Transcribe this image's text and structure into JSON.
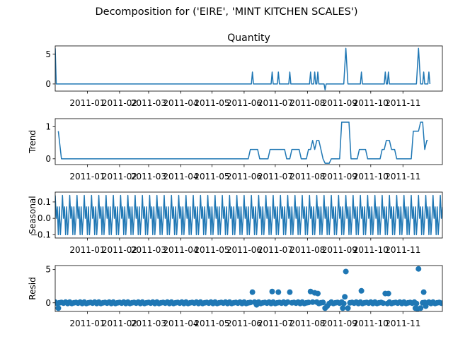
{
  "figure": {
    "title": "Decomposition for ('EIRE', 'MINT KITCHEN SCALES')"
  },
  "colors": {
    "series": "#1f77b4",
    "axes": "#000000",
    "background": "#ffffff"
  },
  "x_axis": {
    "date_range": [
      "2010-12-01",
      "2011-12-09"
    ],
    "tick_dates": [
      "2011-01-01",
      "2011-02-01",
      "2011-03-01",
      "2011-04-01",
      "2011-05-01",
      "2011-06-01",
      "2011-07-01",
      "2011-08-01",
      "2011-09-01",
      "2011-10-01",
      "2011-11-01"
    ],
    "tick_labels": [
      "2011-01",
      "2011-02",
      "2011-03",
      "2011-04",
      "2011-05",
      "2011-06",
      "2011-07",
      "2011-08",
      "2011-09",
      "2011-10",
      "2011-11"
    ]
  },
  "chart_data": [
    {
      "type": "line",
      "title": "Quantity",
      "ylabel": "",
      "ylim": [
        -1.2,
        6.4
      ],
      "yticks": [
        0,
        5
      ],
      "series": [
        {
          "points": [
            [
              "2010-12-01",
              6
            ],
            [
              "2010-12-02",
              0
            ],
            [
              "2011-06-08",
              0
            ],
            [
              "2011-06-09",
              2
            ],
            [
              "2011-06-10",
              0
            ],
            [
              "2011-06-27",
              0
            ],
            [
              "2011-06-28",
              2
            ],
            [
              "2011-06-29",
              0
            ],
            [
              "2011-07-03",
              0
            ],
            [
              "2011-07-04",
              2
            ],
            [
              "2011-07-05",
              0
            ],
            [
              "2011-07-14",
              0
            ],
            [
              "2011-07-15",
              2
            ],
            [
              "2011-07-16",
              0
            ],
            [
              "2011-08-03",
              0
            ],
            [
              "2011-08-04",
              2
            ],
            [
              "2011-08-05",
              0
            ],
            [
              "2011-08-07",
              0
            ],
            [
              "2011-08-08",
              2
            ],
            [
              "2011-08-09",
              0
            ],
            [
              "2011-08-10",
              0
            ],
            [
              "2011-08-11",
              2
            ],
            [
              "2011-08-12",
              0
            ],
            [
              "2011-08-17",
              0
            ],
            [
              "2011-08-18",
              -1
            ],
            [
              "2011-08-19",
              0
            ],
            [
              "2011-09-05",
              0
            ],
            [
              "2011-09-07",
              6
            ],
            [
              "2011-09-09",
              0
            ],
            [
              "2011-09-21",
              0
            ],
            [
              "2011-09-22",
              2
            ],
            [
              "2011-09-23",
              0
            ],
            [
              "2011-10-14",
              0
            ],
            [
              "2011-10-15",
              2
            ],
            [
              "2011-10-16",
              0
            ],
            [
              "2011-10-17",
              0
            ],
            [
              "2011-10-18",
              2
            ],
            [
              "2011-10-19",
              0
            ],
            [
              "2011-11-14",
              0
            ],
            [
              "2011-11-16",
              6
            ],
            [
              "2011-11-18",
              0
            ],
            [
              "2011-11-20",
              0
            ],
            [
              "2011-11-21",
              2
            ],
            [
              "2011-11-22",
              0
            ],
            [
              "2011-11-25",
              0
            ],
            [
              "2011-11-26",
              2
            ],
            [
              "2011-11-27",
              0
            ]
          ]
        }
      ]
    },
    {
      "type": "line",
      "title": "",
      "ylabel": "Trend",
      "ylim": [
        -0.18,
        1.25
      ],
      "yticks": [
        0,
        1
      ],
      "series": [
        {
          "points": [
            [
              "2010-12-04",
              0.86
            ],
            [
              "2010-12-07",
              0
            ],
            [
              "2011-06-05",
              0
            ],
            [
              "2011-06-07",
              0.29
            ],
            [
              "2011-06-14",
              0.29
            ],
            [
              "2011-06-16",
              0
            ],
            [
              "2011-06-24",
              0
            ],
            [
              "2011-06-26",
              0.29
            ],
            [
              "2011-07-10",
              0.29
            ],
            [
              "2011-07-12",
              0
            ],
            [
              "2011-07-15",
              0
            ],
            [
              "2011-07-17",
              0.29
            ],
            [
              "2011-07-24",
              0.29
            ],
            [
              "2011-07-26",
              0
            ],
            [
              "2011-07-31",
              0
            ],
            [
              "2011-08-02",
              0.29
            ],
            [
              "2011-08-04",
              0.29
            ],
            [
              "2011-08-06",
              0.57
            ],
            [
              "2011-08-08",
              0.29
            ],
            [
              "2011-08-10",
              0.57
            ],
            [
              "2011-08-12",
              0.57
            ],
            [
              "2011-08-14",
              0.29
            ],
            [
              "2011-08-16",
              0
            ],
            [
              "2011-08-18",
              -0.14
            ],
            [
              "2011-08-22",
              -0.14
            ],
            [
              "2011-08-24",
              0
            ],
            [
              "2011-09-01",
              0
            ],
            [
              "2011-09-03",
              1.14
            ],
            [
              "2011-09-10",
              1.14
            ],
            [
              "2011-09-12",
              0
            ],
            [
              "2011-09-18",
              0
            ],
            [
              "2011-09-20",
              0.29
            ],
            [
              "2011-09-26",
              0.29
            ],
            [
              "2011-09-28",
              0
            ],
            [
              "2011-10-10",
              0
            ],
            [
              "2011-10-12",
              0.29
            ],
            [
              "2011-10-14",
              0.29
            ],
            [
              "2011-10-16",
              0.57
            ],
            [
              "2011-10-19",
              0.57
            ],
            [
              "2011-10-21",
              0.29
            ],
            [
              "2011-10-24",
              0.29
            ],
            [
              "2011-10-26",
              0
            ],
            [
              "2011-11-09",
              0
            ],
            [
              "2011-11-11",
              0.86
            ],
            [
              "2011-11-16",
              0.86
            ],
            [
              "2011-11-18",
              1.14
            ],
            [
              "2011-11-20",
              1.14
            ],
            [
              "2011-11-22",
              0.29
            ],
            [
              "2011-11-24",
              0.57
            ],
            [
              "2011-11-25",
              0.57
            ]
          ]
        }
      ]
    },
    {
      "type": "line",
      "title": "",
      "ylabel": "Seasonal",
      "ylim": [
        -0.12,
        0.16
      ],
      "yticks": [
        -0.1,
        0.0,
        0.1
      ],
      "ytick_labels": [
        "−0.1",
        "0.0",
        "0.1"
      ],
      "period_days": 7,
      "weekly_pattern": [
        0.14,
        0.0,
        0.07,
        -0.1,
        0.07,
        -0.1,
        0.0
      ],
      "series": [
        {
          "x_start": "2010-12-01",
          "x_end": "2011-12-09"
        }
      ]
    },
    {
      "type": "scatter",
      "title": "",
      "ylabel": "Resid",
      "ylim": [
        -1.3,
        5.6
      ],
      "yticks": [
        0,
        5
      ],
      "baseline": 0,
      "default_resid_pattern": [
        0.1,
        -0.1,
        0.0,
        0.05,
        -0.05,
        0.1,
        -0.1
      ],
      "outliers": [
        [
          "2010-12-04",
          -0.8
        ],
        [
          "2011-06-09",
          1.6
        ],
        [
          "2011-06-13",
          -0.3
        ],
        [
          "2011-06-28",
          1.7
        ],
        [
          "2011-07-04",
          1.6
        ],
        [
          "2011-07-15",
          1.6
        ],
        [
          "2011-08-04",
          1.7
        ],
        [
          "2011-08-08",
          1.5
        ],
        [
          "2011-08-11",
          1.4
        ],
        [
          "2011-08-18",
          -0.8
        ],
        [
          "2011-08-20",
          -0.5
        ],
        [
          "2011-09-04",
          -0.8
        ],
        [
          "2011-09-06",
          0.9
        ],
        [
          "2011-09-07",
          4.7
        ],
        [
          "2011-09-09",
          -0.8
        ],
        [
          "2011-09-22",
          1.8
        ],
        [
          "2011-10-15",
          1.4
        ],
        [
          "2011-10-18",
          1.4
        ],
        [
          "2011-11-13",
          -0.8
        ],
        [
          "2011-11-15",
          -0.9
        ],
        [
          "2011-11-16",
          5.1
        ],
        [
          "2011-11-18",
          -0.8
        ],
        [
          "2011-11-21",
          1.6
        ],
        [
          "2011-11-23",
          -0.5
        ]
      ]
    }
  ]
}
